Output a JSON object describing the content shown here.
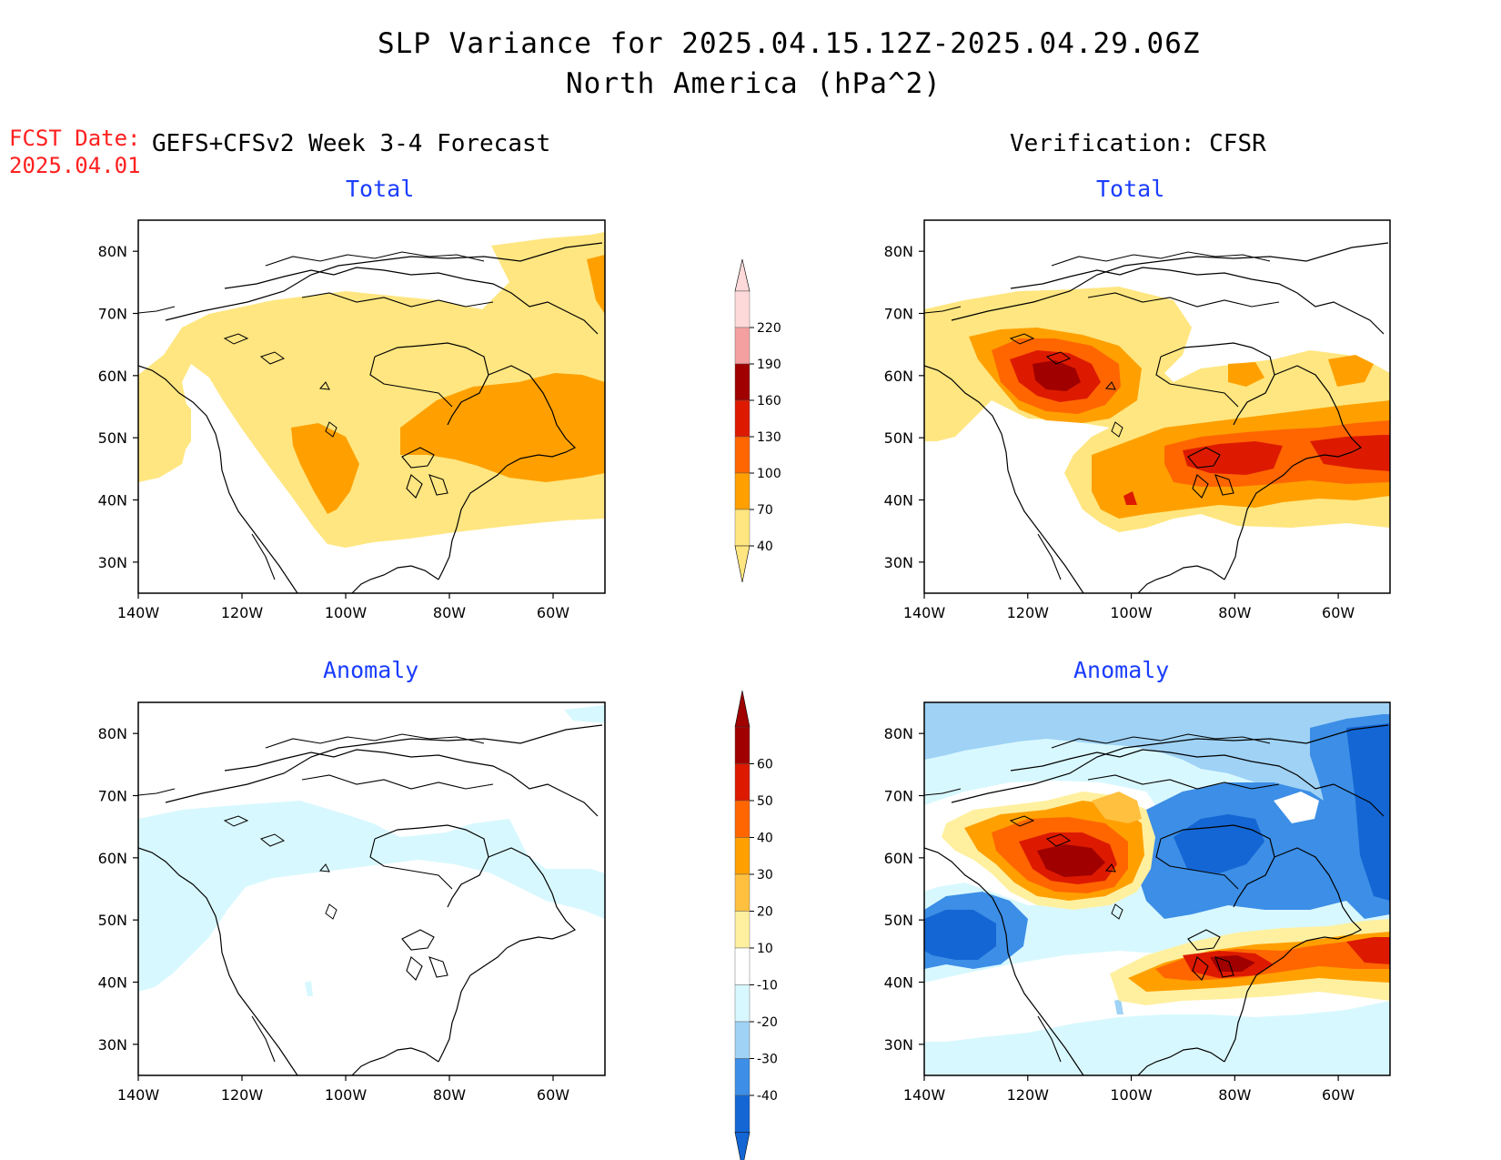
{
  "title": {
    "line1": "SLP Variance for 2025.04.15.12Z-2025.04.29.06Z",
    "line2": "North America (hPa^2)"
  },
  "fcst_date": {
    "label": "FCST Date:",
    "value": "2025.04.01"
  },
  "forecast_header": "GEFS+CFSv2 Week 3-4 Forecast",
  "verification_header": "Verification: CFSR",
  "panels": [
    {
      "title": "Total"
    },
    {
      "title": "Total"
    },
    {
      "title": "Anomaly"
    },
    {
      "title": "Anomaly"
    }
  ],
  "axes": {
    "lat_labels": [
      "80N",
      "70N",
      "60N",
      "50N",
      "40N",
      "30N"
    ],
    "lat_values": [
      80,
      70,
      60,
      50,
      40,
      30
    ],
    "lon_labels": [
      "140W",
      "120W",
      "100W",
      "80W",
      "60W"
    ],
    "lon_values": [
      -140,
      -120,
      -100,
      -80,
      -60
    ],
    "lon_range": [
      -140,
      -50
    ],
    "lat_range": [
      25,
      85
    ]
  },
  "colorbar_total": {
    "labels": [
      "220",
      "190",
      "160",
      "130",
      "100",
      "70",
      "40"
    ],
    "colors": [
      "#fdd9d9",
      "#f4a0a0",
      "#a00000",
      "#dd1a00",
      "#ff6600",
      "#ffa000",
      "#ffe680"
    ]
  },
  "colorbar_anomaly": {
    "labels": [
      "60",
      "50",
      "40",
      "30",
      "20",
      "10",
      "-10",
      "-20",
      "-30",
      "-40"
    ],
    "colors": [
      "#a00000",
      "#dd1a00",
      "#ff6600",
      "#ffa000",
      "#ffc040",
      "#fff0a0",
      "#ffffff",
      "#d8f8ff",
      "#9fd2f5",
      "#3c8ee6",
      "#1466d4"
    ]
  }
}
